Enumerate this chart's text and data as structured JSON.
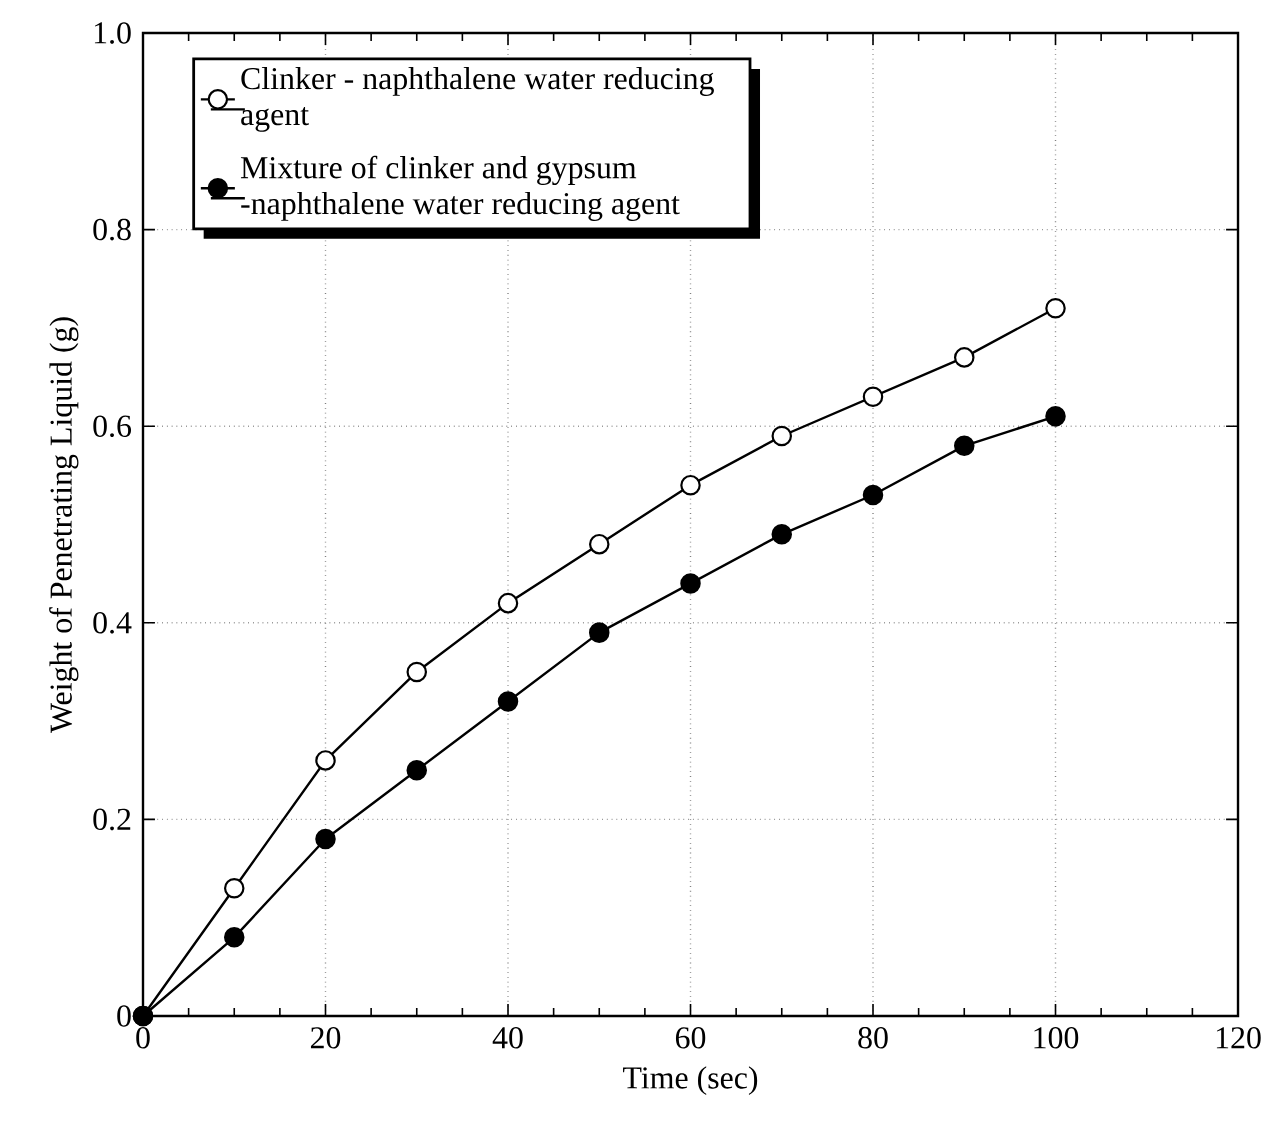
{
  "chart_data": {
    "type": "line",
    "xlabel": "Time (sec)",
    "ylabel": "Weight of Penetrating Liquid (g)",
    "x": [
      0,
      10,
      20,
      30,
      40,
      50,
      60,
      70,
      80,
      90,
      100
    ],
    "series": [
      {
        "name": "Clinker - naphthalene water reducing agent",
        "color": "#ffffff",
        "values": [
          0,
          0.13,
          0.26,
          0.35,
          0.42,
          0.48,
          0.54,
          0.59,
          0.63,
          0.67,
          0.72
        ]
      },
      {
        "name": "Mixture of clinker and gypsum -naphthalene water reducing agent",
        "color": "#000000",
        "values": [
          0,
          0.08,
          0.18,
          0.25,
          0.32,
          0.39,
          0.44,
          0.49,
          0.53,
          0.58,
          0.61
        ]
      }
    ],
    "xlim": [
      0,
      120
    ],
    "xticks": [
      0,
      20,
      40,
      60,
      80,
      100,
      120
    ],
    "ylim": [
      0,
      1
    ],
    "yticks": [
      0,
      {
        "value": 0.2,
        "label": "0.2"
      },
      {
        "value": 0.4,
        "label": "0.4"
      },
      {
        "value": 0.6,
        "label": "0.6"
      },
      {
        "value": 0.8,
        "label": "0.8"
      },
      {
        "value": 1,
        "label": "1.0"
      }
    ],
    "grid": true,
    "legend": "top left",
    "marker": "circle",
    "line_style": "solid"
  }
}
